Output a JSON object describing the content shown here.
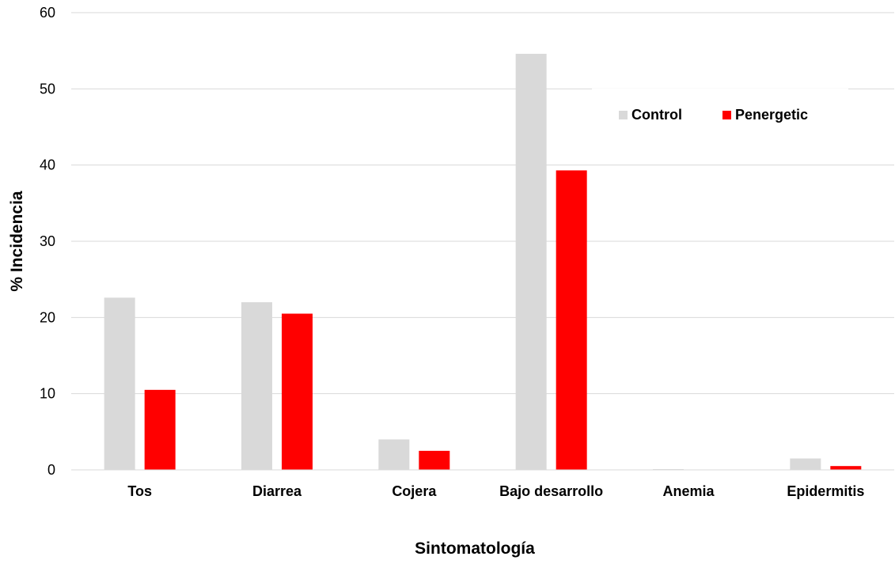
{
  "chart_data": {
    "type": "bar",
    "title": "",
    "xlabel": "Sintomatología",
    "ylabel": "% Incidencia",
    "ylim": [
      0,
      60
    ],
    "yticks": [
      "0",
      "10",
      "20",
      "30",
      "40",
      "50",
      "60"
    ],
    "grid": true,
    "legend_position": "top-right",
    "categories": [
      "Tos",
      "Diarrea",
      "Cojera",
      "Bajo desarrollo",
      "Anemia",
      "Epidermitis"
    ],
    "series": [
      {
        "name": "Control",
        "color": "#d9d9d9",
        "values": [
          22.6,
          22.0,
          4.0,
          54.6,
          0.1,
          1.5
        ]
      },
      {
        "name": "Penergetic",
        "color": "#ff0000",
        "values": [
          10.5,
          20.5,
          2.5,
          39.3,
          0.0,
          0.5
        ]
      }
    ]
  }
}
